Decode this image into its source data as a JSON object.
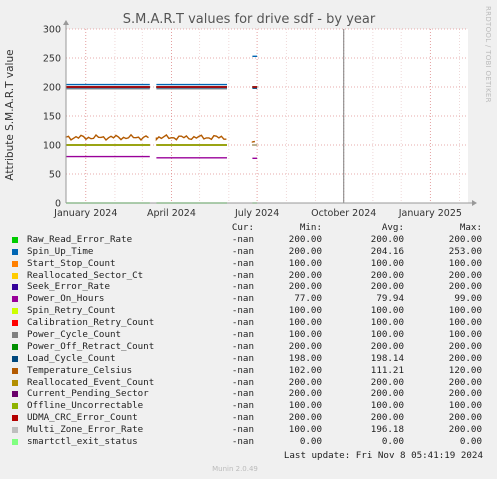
{
  "chart_data": {
    "type": "line",
    "title": "S.M.A.R.T values for drive sdf - by year",
    "ylabel": "Attribute S.M.A.R.T value",
    "ylim": [
      0,
      300
    ],
    "yticks": [
      "0",
      "50",
      "100",
      "150",
      "200",
      "250",
      "300"
    ],
    "xtick_labels": [
      "January 2024",
      "April 2024",
      "July 2024",
      "October 2024",
      "January 2025"
    ],
    "xrange": [
      "2023-12-11",
      "2025-02-10"
    ],
    "xticks": [
      "2024-01-01",
      "2024-04-01",
      "2024-07-01",
      "2024-10-01",
      "2025-01-01"
    ],
    "segments": [
      {
        "start": "2023-12-11",
        "end": "2024-03-09"
      },
      {
        "start": "2024-03-16",
        "end": "2024-05-30"
      },
      {
        "start": "2024-06-26",
        "end": "2024-07-01"
      }
    ],
    "spike_date": "2024-10-01",
    "grid": true,
    "series": [
      {
        "name": "Raw_Read_Error_Rate",
        "color": "#00cc00",
        "values": [
          200,
          200,
          200
        ]
      },
      {
        "name": "Spin_Up_Time",
        "color": "#0066b3",
        "values": [
          204.16,
          204.16,
          253
        ]
      },
      {
        "name": "Start_Stop_Count",
        "color": "#ff8000",
        "values": [
          100,
          100,
          100
        ]
      },
      {
        "name": "Reallocated_Sector_Ct",
        "color": "#ffcc00",
        "values": [
          200,
          200,
          200
        ]
      },
      {
        "name": "Seek_Error_Rate",
        "color": "#330099",
        "values": [
          200,
          200,
          200
        ]
      },
      {
        "name": "Power_On_Hours",
        "color": "#990099",
        "values": [
          80,
          78,
          77
        ]
      },
      {
        "name": "Spin_Retry_Count",
        "color": "#ccff00",
        "values": [
          100,
          100,
          100
        ]
      },
      {
        "name": "Calibration_Retry_Count",
        "color": "#ff0000",
        "values": [
          100,
          100,
          100
        ]
      },
      {
        "name": "Power_Cycle_Count",
        "color": "#808080",
        "values": [
          100,
          100,
          100
        ]
      },
      {
        "name": "Power_Off_Retract_Count",
        "color": "#008f00",
        "values": [
          200,
          200,
          200
        ]
      },
      {
        "name": "Load_Cycle_Count",
        "color": "#00487d",
        "values": [
          198.14,
          198.14,
          198
        ]
      },
      {
        "name": "Temperature_Celsius",
        "color": "#b35a00",
        "values": [
          113,
          113,
          106
        ]
      },
      {
        "name": "Reallocated_Event_Count",
        "color": "#b38f00",
        "values": [
          200,
          200,
          200
        ]
      },
      {
        "name": "Current_Pending_Sector",
        "color": "#6b006b",
        "values": [
          200,
          200,
          200
        ]
      },
      {
        "name": "Offline_Uncorrectable",
        "color": "#8fb300",
        "values": [
          100,
          100,
          100
        ]
      },
      {
        "name": "UDMA_CRC_Error_Count",
        "color": "#b30000",
        "values": [
          200,
          200,
          200
        ]
      },
      {
        "name": "Multi_Zone_Error_Rate",
        "color": "#bebebe",
        "values": [
          196.18,
          196.18,
          100
        ]
      },
      {
        "name": "smartctl_exit_status",
        "color": "#80ff80",
        "values": [
          0,
          0,
          0
        ]
      }
    ]
  },
  "legend": {
    "headers": {
      "cur": "Cur:",
      "min": "Min:",
      "avg": "Avg:",
      "max": "Max:"
    },
    "rows": [
      {
        "name": "Raw_Read_Error_Rate",
        "color": "#00cc00",
        "cur": "-nan",
        "min": "200.00",
        "avg": "200.00",
        "max": "200.00"
      },
      {
        "name": "Spin_Up_Time",
        "color": "#0066b3",
        "cur": "-nan",
        "min": "200.00",
        "avg": "204.16",
        "max": "253.00"
      },
      {
        "name": "Start_Stop_Count",
        "color": "#ff8000",
        "cur": "-nan",
        "min": "100.00",
        "avg": "100.00",
        "max": "100.00"
      },
      {
        "name": "Reallocated_Sector_Ct",
        "color": "#ffcc00",
        "cur": "-nan",
        "min": "200.00",
        "avg": "200.00",
        "max": "200.00"
      },
      {
        "name": "Seek_Error_Rate",
        "color": "#330099",
        "cur": "-nan",
        "min": "200.00",
        "avg": "200.00",
        "max": "200.00"
      },
      {
        "name": "Power_On_Hours",
        "color": "#990099",
        "cur": "-nan",
        "min": "77.00",
        "avg": "79.94",
        "max": "99.00"
      },
      {
        "name": "Spin_Retry_Count",
        "color": "#ccff00",
        "cur": "-nan",
        "min": "100.00",
        "avg": "100.00",
        "max": "100.00"
      },
      {
        "name": "Calibration_Retry_Count",
        "color": "#ff0000",
        "cur": "-nan",
        "min": "100.00",
        "avg": "100.00",
        "max": "100.00"
      },
      {
        "name": "Power_Cycle_Count",
        "color": "#808080",
        "cur": "-nan",
        "min": "100.00",
        "avg": "100.00",
        "max": "100.00"
      },
      {
        "name": "Power_Off_Retract_Count",
        "color": "#008f00",
        "cur": "-nan",
        "min": "200.00",
        "avg": "200.00",
        "max": "200.00"
      },
      {
        "name": "Load_Cycle_Count",
        "color": "#00487d",
        "cur": "-nan",
        "min": "198.00",
        "avg": "198.14",
        "max": "200.00"
      },
      {
        "name": "Temperature_Celsius",
        "color": "#b35a00",
        "cur": "-nan",
        "min": "102.00",
        "avg": "111.21",
        "max": "120.00"
      },
      {
        "name": "Reallocated_Event_Count",
        "color": "#b38f00",
        "cur": "-nan",
        "min": "200.00",
        "avg": "200.00",
        "max": "200.00"
      },
      {
        "name": "Current_Pending_Sector",
        "color": "#6b006b",
        "cur": "-nan",
        "min": "200.00",
        "avg": "200.00",
        "max": "200.00"
      },
      {
        "name": "Offline_Uncorrectable",
        "color": "#8fb300",
        "cur": "-nan",
        "min": "100.00",
        "avg": "100.00",
        "max": "100.00"
      },
      {
        "name": "UDMA_CRC_Error_Count",
        "color": "#b30000",
        "cur": "-nan",
        "min": "200.00",
        "avg": "200.00",
        "max": "200.00"
      },
      {
        "name": "Multi_Zone_Error_Rate",
        "color": "#bebebe",
        "cur": "-nan",
        "min": "100.00",
        "avg": "196.18",
        "max": "200.00"
      },
      {
        "name": "smartctl_exit_status",
        "color": "#80ff80",
        "cur": "-nan",
        "min": "0.00",
        "avg": "0.00",
        "max": "0.00"
      }
    ]
  },
  "footer": {
    "last_update": "Last update: Fri Nov  8 05:41:19 2024"
  },
  "side_label": "RRDTOOL / TOBI OETIKER",
  "munin_version": "Munin 2.0.49"
}
